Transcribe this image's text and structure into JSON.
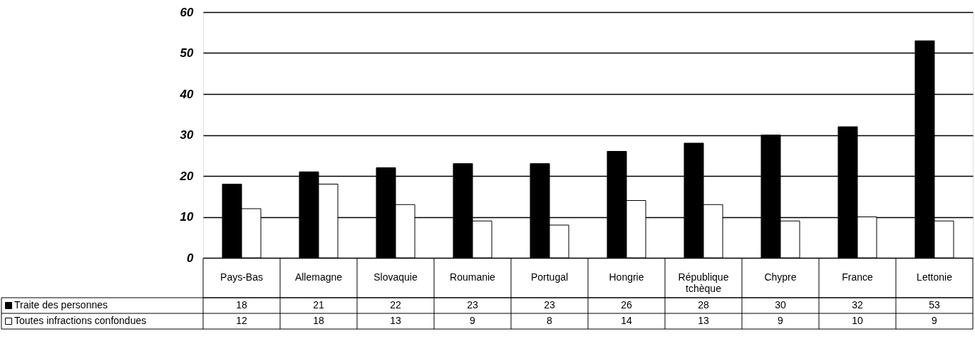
{
  "chart_data": {
    "type": "bar",
    "categories": [
      "Pays-Bas",
      "Allemagne",
      "Slovaquie",
      "Roumanie",
      "Portugal",
      "Hongrie",
      "République tchèque",
      "Chypre",
      "France",
      "Lettonie"
    ],
    "series": [
      {
        "name": "Traite des personnes",
        "color": "#000000",
        "values": [
          18,
          21,
          22,
          23,
          23,
          26,
          28,
          30,
          32,
          53
        ]
      },
      {
        "name": "Toutes infractions confondues",
        "color": "#ffffff",
        "values": [
          12,
          18,
          13,
          9,
          8,
          14,
          13,
          9,
          10,
          9
        ]
      }
    ],
    "ylim": [
      0,
      60
    ],
    "yticks": [
      0,
      10,
      20,
      30,
      40,
      50,
      60
    ],
    "grid": "y",
    "legend": "bottom left",
    "data_labels": true
  }
}
